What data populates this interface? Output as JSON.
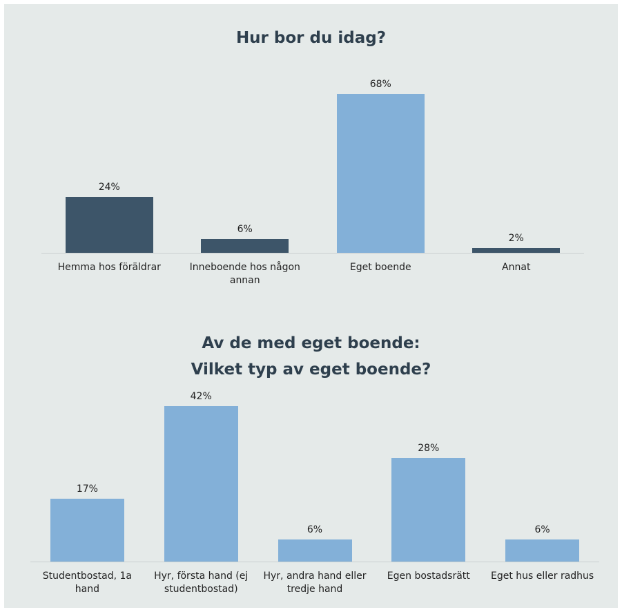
{
  "chart_data": [
    {
      "type": "bar",
      "title": "Hur bor du idag?",
      "categories": [
        "Hemma hos föräldrar",
        "Inneboende hos någon annan",
        "Eget boende",
        "Annat"
      ],
      "values": [
        24,
        6,
        68,
        2
      ],
      "value_labels": [
        "24%",
        "6%",
        "68%",
        "2%"
      ],
      "colors": [
        "#3d5569",
        "#3d5569",
        "#83b0d8",
        "#3d5569"
      ]
    },
    {
      "type": "bar",
      "title": "Av de med eget boende:\nVilket typ av eget boende?",
      "categories": [
        "Studentbostad, 1a hand",
        "Hyr, första hand (ej studentbostad)",
        "Hyr, andra hand eller tredje hand",
        "Egen bostadsrätt",
        "Eget hus eller radhus"
      ],
      "values": [
        17,
        42,
        6,
        28,
        6
      ],
      "value_labels": [
        "17%",
        "42%",
        "6%",
        "28%",
        "6%"
      ],
      "colors": [
        "#83b0d8",
        "#83b0d8",
        "#83b0d8",
        "#83b0d8",
        "#83b0d8"
      ]
    }
  ]
}
